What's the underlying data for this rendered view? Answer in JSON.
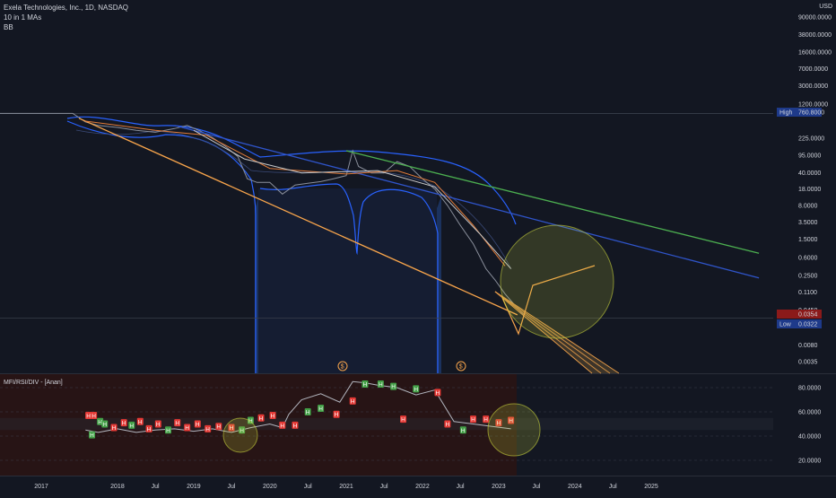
{
  "header": {
    "title": "Exela Technologies, Inc., 1D, NASDAQ",
    "line2": "10 in 1 MAs",
    "line3": "BB"
  },
  "currency": "USD",
  "colors": {
    "background": "#131722",
    "price": "#8a8f9b",
    "bb": "#2962ff",
    "bb_fill": "#1e3a6e",
    "ma_orange": "#e07b39",
    "ma_white": "#c8c8c8",
    "trend_orange": "#f7a44b",
    "trend_green": "#4caf50",
    "trend_blue": "#2f54c9",
    "circle": "#c8d23c",
    "osc_line": "#b2b5be",
    "osc_panel": "#2a1414",
    "h_red": "#e53935",
    "h_green": "#43a047",
    "label_high": "#1e3a8a",
    "label_price": "#8b1a1a",
    "label_low": "#1e3a8a"
  },
  "chart_data": [
    {
      "type": "line",
      "title": "Exela Technologies, Inc., 1D, NASDAQ",
      "scale": "log",
      "y_ticks": [
        "90000.0000",
        "38000.0000",
        "16000.0000",
        "7000.0000",
        "3000.0000",
        "1200.0000",
        "225.0000",
        "95.0000",
        "40.0000",
        "18.0000",
        "8.0000",
        "3.5000",
        "1.5000",
        "0.6000",
        "0.2500",
        "0.1100",
        "0.0450",
        "0.0080",
        "0.0035"
      ],
      "y_tick_values": [
        90000,
        38000,
        16000,
        7000,
        3000,
        1200,
        225,
        95,
        40,
        18,
        8,
        3.5,
        1.5,
        0.6,
        0.25,
        0.11,
        0.045,
        0.008,
        0.0035
      ],
      "x_ticks": [
        "2017",
        "2018",
        "Jul",
        "2019",
        "Jul",
        "2020",
        "Jul",
        "2021",
        "Jul",
        "2022",
        "Jul",
        "2023",
        "Jul",
        "2024",
        "Jul",
        "2025"
      ],
      "x_tick_dates": [
        "2017-01-01",
        "2018-01-01",
        "2018-07-01",
        "2019-01-01",
        "2019-07-01",
        "2020-01-01",
        "2020-07-01",
        "2021-01-01",
        "2021-07-01",
        "2022-01-01",
        "2022-07-01",
        "2023-01-01",
        "2023-07-01",
        "2024-01-01",
        "2024-07-01",
        "2025-01-01"
      ],
      "price_labels": [
        {
          "tag": "High",
          "value": "760.8000"
        },
        {
          "tag": "",
          "value": "0.0354"
        },
        {
          "tag": "Low",
          "value": "0.0322"
        }
      ],
      "series": [
        {
          "values": [
            [
              "2016-01-01",
              760
            ],
            [
              "2017-06-01",
              760
            ],
            [
              "2017-08-01",
              500
            ],
            [
              "2017-10-01",
              420
            ],
            [
              "2018-01-01",
              380
            ],
            [
              "2018-04-01",
              330
            ],
            [
              "2018-07-01",
              300
            ],
            [
              "2018-10-01",
              360
            ],
            [
              "2018-12-01",
              420
            ],
            [
              "2019-02-01",
              320
            ],
            [
              "2019-04-01",
              230
            ],
            [
              "2019-06-01",
              150
            ],
            [
              "2019-08-01",
              90
            ],
            [
              "2019-09-15",
              30
            ],
            [
              "2019-11-01",
              25
            ],
            [
              "2020-01-01",
              25
            ],
            [
              "2020-03-01",
              14
            ],
            [
              "2020-05-01",
              22
            ],
            [
              "2020-07-01",
              24
            ],
            [
              "2020-09-01",
              26
            ],
            [
              "2020-11-01",
              30
            ],
            [
              "2021-01-01",
              35
            ],
            [
              "2021-02-01",
              120
            ],
            [
              "2021-03-01",
              55
            ],
            [
              "2021-05-01",
              40
            ],
            [
              "2021-07-01",
              40
            ],
            [
              "2021-09-01",
              70
            ],
            [
              "2021-11-01",
              55
            ],
            [
              "2022-01-01",
              30
            ],
            [
              "2022-03-01",
              18
            ],
            [
              "2022-05-01",
              8
            ],
            [
              "2022-07-01",
              3
            ],
            [
              "2022-09-01",
              1.2
            ],
            [
              "2022-11-01",
              0.35
            ],
            [
              "2022-12-15",
              0.2
            ],
            [
              "2023-02-01",
              0.1
            ],
            [
              "2023-03-15",
              0.06
            ],
            [
              "2023-05-01",
              0.035
            ]
          ]
        },
        {
          "values": [
            [
              "2017-07-01",
              600
            ],
            [
              "2023-04-01",
              0.0354
            ]
          ]
        },
        {
          "values": [
            [
              "2018-10-01",
              420
            ],
            [
              "2026-06-01",
              0.22
            ]
          ]
        },
        {
          "values": [
            [
              "2021-01-01",
              120
            ],
            [
              "2026-06-01",
              0.75
            ]
          ]
        },
        {
          "values": [
            [
              "2017-08-01",
              520
            ],
            [
              "2018-07-01",
              330
            ],
            [
              "2019-03-01",
              260
            ],
            [
              "2020-01-01",
              50
            ],
            [
              "2021-01-01",
              38
            ],
            [
              "2021-09-01",
              45
            ],
            [
              "2022-03-01",
              25
            ],
            [
              "2022-09-01",
              3
            ],
            [
              "2023-02-01",
              0.4
            ]
          ]
        },
        {
          "values": [
            [
              "2019-01-01",
              330
            ],
            [
              "2019-09-01",
              80
            ],
            [
              "2020-06-01",
              40
            ],
            [
              "2021-06-01",
              45
            ],
            [
              "2022-03-01",
              20
            ],
            [
              "2022-10-01",
              2
            ],
            [
              "2023-03-01",
              0.35
            ]
          ]
        }
      ]
    },
    {
      "type": "line",
      "title": "MFI/RSI/DIV - [Anan]",
      "y_ticks": [
        "80.0000",
        "60.0000",
        "40.0000",
        "20.0000"
      ],
      "y_tick_values": [
        80,
        60,
        40,
        20
      ],
      "ylim": [
        8,
        92
      ],
      "series": [
        {
          "values": [
            [
              "2017-08-01",
              45
            ],
            [
              "2017-10-01",
              43
            ],
            [
              "2018-01-01",
              46
            ],
            [
              "2018-04-01",
              43
            ],
            [
              "2018-07-01",
              45
            ],
            [
              "2018-10-01",
              46
            ],
            [
              "2019-01-01",
              44
            ],
            [
              "2019-04-01",
              46
            ],
            [
              "2019-07-01",
              43
            ],
            [
              "2019-10-01",
              47
            ],
            [
              "2020-01-01",
              50
            ],
            [
              "2020-03-01",
              47
            ],
            [
              "2020-04-01",
              58
            ],
            [
              "2020-06-01",
              70
            ],
            [
              "2020-09-01",
              75
            ],
            [
              "2020-12-01",
              68
            ],
            [
              "2021-02-01",
              85
            ],
            [
              "2021-04-01",
              84
            ],
            [
              "2021-06-01",
              82
            ],
            [
              "2021-09-01",
              80
            ],
            [
              "2021-12-01",
              74
            ],
            [
              "2022-03-01",
              78
            ],
            [
              "2022-06-01",
              52
            ],
            [
              "2022-09-01",
              50
            ],
            [
              "2022-12-01",
              48
            ],
            [
              "2023-03-01",
              46
            ]
          ]
        }
      ],
      "markers": [
        {
          "d": "2017-08-15",
          "v": 57,
          "t": "H",
          "c": "r"
        },
        {
          "d": "2017-09-10",
          "v": 57,
          "t": "H",
          "c": "r"
        },
        {
          "d": "2017-10-10",
          "v": 52,
          "t": "H",
          "c": "g"
        },
        {
          "d": "2017-11-01",
          "v": 50,
          "t": "H",
          "c": "g"
        },
        {
          "d": "2017-09-01",
          "v": 41,
          "t": "H",
          "c": "g"
        },
        {
          "d": "2017-12-15",
          "v": 47,
          "t": "H",
          "c": "r"
        },
        {
          "d": "2018-02-01",
          "v": 51,
          "t": "H",
          "c": "r"
        },
        {
          "d": "2018-03-10",
          "v": 49,
          "t": "H",
          "c": "g"
        },
        {
          "d": "2018-04-20",
          "v": 52,
          "t": "H",
          "c": "r"
        },
        {
          "d": "2018-06-01",
          "v": 46,
          "t": "H",
          "c": "r"
        },
        {
          "d": "2018-07-15",
          "v": 50,
          "t": "H",
          "c": "r"
        },
        {
          "d": "2018-09-01",
          "v": 45,
          "t": "H",
          "c": "g"
        },
        {
          "d": "2018-10-15",
          "v": 51,
          "t": "H",
          "c": "r"
        },
        {
          "d": "2018-12-01",
          "v": 47,
          "t": "H",
          "c": "r"
        },
        {
          "d": "2019-01-20",
          "v": 50,
          "t": "H",
          "c": "r"
        },
        {
          "d": "2019-03-10",
          "v": 46,
          "t": "H",
          "c": "r"
        },
        {
          "d": "2019-05-01",
          "v": 48,
          "t": "H",
          "c": "r"
        },
        {
          "d": "2019-07-01",
          "v": 47,
          "t": "H",
          "c": "r"
        },
        {
          "d": "2019-08-20",
          "v": 45,
          "t": "H",
          "c": "g"
        },
        {
          "d": "2019-10-01",
          "v": 53,
          "t": "H",
          "c": "g"
        },
        {
          "d": "2019-11-20",
          "v": 55,
          "t": "H",
          "c": "r"
        },
        {
          "d": "2020-01-15",
          "v": 57,
          "t": "H",
          "c": "r"
        },
        {
          "d": "2020-03-01",
          "v": 49,
          "t": "H",
          "c": "r"
        },
        {
          "d": "2020-05-01",
          "v": 49,
          "t": "H",
          "c": "r"
        },
        {
          "d": "2020-07-01",
          "v": 60,
          "t": "H",
          "c": "g"
        },
        {
          "d": "2020-09-01",
          "v": 63,
          "t": "H",
          "c": "g"
        },
        {
          "d": "2020-11-15",
          "v": 58,
          "t": "H",
          "c": "r"
        },
        {
          "d": "2021-02-01",
          "v": 69,
          "t": "H",
          "c": "r"
        },
        {
          "d": "2021-04-01",
          "v": 83,
          "t": "H",
          "c": "g"
        },
        {
          "d": "2021-06-15",
          "v": 83,
          "t": "H",
          "c": "g"
        },
        {
          "d": "2021-08-15",
          "v": 81,
          "t": "H",
          "c": "g"
        },
        {
          "d": "2021-10-01",
          "v": 54,
          "t": "H",
          "c": "r"
        },
        {
          "d": "2021-12-01",
          "v": 79,
          "t": "H",
          "c": "g"
        },
        {
          "d": "2022-03-15",
          "v": 76,
          "t": "H",
          "c": "r"
        },
        {
          "d": "2022-05-01",
          "v": 50,
          "t": "H",
          "c": "r"
        },
        {
          "d": "2022-07-15",
          "v": 45,
          "t": "H",
          "c": "g"
        },
        {
          "d": "2022-09-01",
          "v": 54,
          "t": "H",
          "c": "r"
        },
        {
          "d": "2022-11-01",
          "v": 54,
          "t": "H",
          "c": "r"
        },
        {
          "d": "2023-01-01",
          "v": 51,
          "t": "H",
          "c": "r"
        },
        {
          "d": "2023-03-01",
          "v": 53,
          "t": "H",
          "c": "r"
        }
      ]
    }
  ]
}
